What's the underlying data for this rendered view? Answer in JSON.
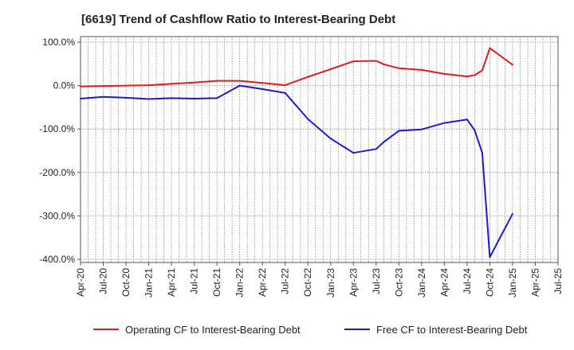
{
  "chart_data": {
    "type": "line",
    "title": "[6619]  Trend of Cashflow Ratio to Interest-Bearing Debt",
    "xlabel": "",
    "ylabel": "",
    "ylim": [
      -400,
      100
    ],
    "xlim": [
      "2020-04",
      "2025-07"
    ],
    "y_ticks": [
      "100.0%",
      "0.0%",
      "-100.0%",
      "-200.0%",
      "-300.0%",
      "-400.0%"
    ],
    "y_tick_values": [
      100,
      0,
      -100,
      -200,
      -300,
      -400
    ],
    "x_ticks": [
      "Apr-20",
      "Jul-20",
      "Oct-20",
      "Jan-21",
      "Apr-21",
      "Jul-21",
      "Oct-21",
      "Jan-22",
      "Apr-22",
      "Jul-22",
      "Oct-22",
      "Jan-23",
      "Apr-23",
      "Jul-23",
      "Oct-23",
      "Jan-24",
      "Apr-24",
      "Jul-24",
      "Oct-24",
      "Jan-25",
      "Apr-25",
      "Jul-25"
    ],
    "x_tick_values": [
      "2020-04",
      "2020-07",
      "2020-10",
      "2021-01",
      "2021-04",
      "2021-07",
      "2021-10",
      "2022-01",
      "2022-04",
      "2022-07",
      "2022-10",
      "2023-01",
      "2023-04",
      "2023-07",
      "2023-10",
      "2024-01",
      "2024-04",
      "2024-07",
      "2024-10",
      "2025-01",
      "2025-04",
      "2025-07"
    ],
    "grid": true,
    "legend_position": "bottom",
    "series": [
      {
        "name": "Operating CF to Interest-Bearing Debt",
        "color": "#e8191b",
        "x": [
          "2020-04",
          "2020-07",
          "2020-10",
          "2021-01",
          "2021-04",
          "2021-07",
          "2021-10",
          "2022-01",
          "2022-04",
          "2022-07",
          "2022-10",
          "2023-01",
          "2023-04",
          "2023-07",
          "2023-08",
          "2023-10",
          "2024-01",
          "2024-04",
          "2024-07",
          "2024-08",
          "2024-09",
          "2024-10",
          "2025-01"
        ],
        "values": [
          -2,
          -1,
          0,
          1,
          4,
          7,
          11,
          11,
          6,
          1,
          20,
          38,
          56,
          57,
          49,
          40,
          36,
          27,
          21,
          24,
          35,
          86,
          48
        ]
      },
      {
        "name": "Free CF to Interest-Bearing Debt",
        "color": "#1a1adb",
        "x": [
          "2020-04",
          "2020-07",
          "2020-10",
          "2021-01",
          "2021-04",
          "2021-07",
          "2021-10",
          "2022-01",
          "2022-04",
          "2022-07",
          "2022-10",
          "2023-01",
          "2023-04",
          "2023-07",
          "2023-08",
          "2023-10",
          "2024-01",
          "2024-04",
          "2024-07",
          "2024-08",
          "2024-09",
          "2024-10",
          "2025-01"
        ],
        "values": [
          -30,
          -26,
          -28,
          -31,
          -29,
          -30,
          -29,
          0,
          -8,
          -17,
          -77,
          -122,
          -155,
          -146,
          -130,
          -104,
          -101,
          -86,
          -78,
          -103,
          -155,
          -395,
          -295
        ]
      }
    ]
  }
}
